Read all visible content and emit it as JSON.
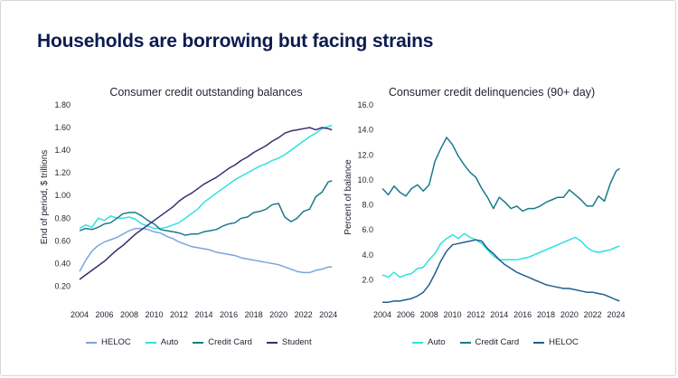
{
  "page": {
    "title": "Households are borrowing but facing strains"
  },
  "charts": [
    {
      "key": "left",
      "chart_data": {
        "type": "line",
        "title": "Consumer credit outstanding balances",
        "xlabel": "",
        "ylabel": "End of period, $ trillions",
        "xlim": [
          2004,
          2024.5
        ],
        "ylim": [
          0.1,
          1.8
        ],
        "x_ticks": [
          2004,
          2006,
          2008,
          2010,
          2012,
          2014,
          2016,
          2018,
          2020,
          2022,
          2024
        ],
        "y_ticks": [
          0.2,
          0.4,
          0.6,
          0.8,
          1.0,
          1.2,
          1.4,
          1.6,
          1.8
        ],
        "y_tick_labels": [
          "0.20",
          "0.40",
          "0.60",
          "0.80",
          "1.00",
          "1.20",
          "1.40",
          "1.60",
          "1.80"
        ],
        "grid": false,
        "legend_position": "bottom",
        "series": [
          {
            "name": "HELOC",
            "color": "#7aa6d8",
            "x": [
              2004,
              2004.5,
              2005,
              2005.5,
              2006,
              2006.5,
              2007,
              2007.5,
              2008,
              2008.5,
              2009,
              2009.5,
              2010,
              2010.5,
              2011,
              2011.5,
              2012,
              2012.5,
              2013,
              2013.5,
              2014,
              2014.5,
              2015,
              2015.5,
              2016,
              2016.5,
              2017,
              2017.5,
              2018,
              2018.5,
              2019,
              2019.5,
              2020,
              2020.5,
              2021,
              2021.5,
              2022,
              2022.5,
              2023,
              2023.5,
              2024,
              2024.3
            ],
            "values": [
              0.33,
              0.43,
              0.51,
              0.56,
              0.59,
              0.61,
              0.63,
              0.66,
              0.69,
              0.71,
              0.71,
              0.7,
              0.68,
              0.67,
              0.64,
              0.62,
              0.59,
              0.57,
              0.55,
              0.54,
              0.53,
              0.52,
              0.5,
              0.49,
              0.48,
              0.47,
              0.45,
              0.44,
              0.43,
              0.42,
              0.41,
              0.4,
              0.39,
              0.37,
              0.35,
              0.33,
              0.32,
              0.32,
              0.34,
              0.35,
              0.37,
              0.37
            ]
          },
          {
            "name": "Auto",
            "color": "#2fe0e0",
            "x": [
              2004,
              2004.5,
              2005,
              2005.5,
              2006,
              2006.5,
              2007,
              2007.5,
              2008,
              2008.5,
              2009,
              2009.5,
              2010,
              2010.5,
              2011,
              2011.5,
              2012,
              2012.5,
              2013,
              2013.5,
              2014,
              2014.5,
              2015,
              2015.5,
              2016,
              2016.5,
              2017,
              2017.5,
              2018,
              2018.5,
              2019,
              2019.5,
              2020,
              2020.5,
              2021,
              2021.5,
              2022,
              2022.5,
              2023,
              2023.5,
              2024,
              2024.3
            ],
            "values": [
              0.71,
              0.74,
              0.72,
              0.8,
              0.78,
              0.82,
              0.8,
              0.8,
              0.81,
              0.79,
              0.75,
              0.73,
              0.71,
              0.71,
              0.72,
              0.74,
              0.76,
              0.8,
              0.84,
              0.88,
              0.94,
              0.98,
              1.02,
              1.06,
              1.1,
              1.14,
              1.17,
              1.2,
              1.23,
              1.26,
              1.28,
              1.31,
              1.33,
              1.36,
              1.4,
              1.44,
              1.48,
              1.52,
              1.55,
              1.59,
              1.61,
              1.62
            ]
          },
          {
            "name": "Credit Card",
            "color": "#1a7a8c",
            "x": [
              2004,
              2004.5,
              2005,
              2005.5,
              2006,
              2006.5,
              2007,
              2007.5,
              2008,
              2008.5,
              2009,
              2009.5,
              2010,
              2010.5,
              2011,
              2011.5,
              2012,
              2012.5,
              2013,
              2013.5,
              2014,
              2014.5,
              2015,
              2015.5,
              2016,
              2016.5,
              2017,
              2017.5,
              2018,
              2018.5,
              2019,
              2019.5,
              2020,
              2020.5,
              2021,
              2021.5,
              2022,
              2022.5,
              2023,
              2023.5,
              2024,
              2024.3
            ],
            "values": [
              0.69,
              0.71,
              0.7,
              0.72,
              0.75,
              0.76,
              0.8,
              0.84,
              0.85,
              0.85,
              0.82,
              0.78,
              0.75,
              0.7,
              0.69,
              0.68,
              0.67,
              0.65,
              0.66,
              0.66,
              0.68,
              0.69,
              0.7,
              0.73,
              0.75,
              0.76,
              0.8,
              0.81,
              0.85,
              0.86,
              0.88,
              0.92,
              0.93,
              0.81,
              0.77,
              0.8,
              0.86,
              0.88,
              0.99,
              1.03,
              1.12,
              1.13
            ]
          },
          {
            "name": "Student",
            "color": "#3b2b6e",
            "x": [
              2004,
              2004.5,
              2005,
              2005.5,
              2006,
              2006.5,
              2007,
              2007.5,
              2008,
              2008.5,
              2009,
              2009.5,
              2010,
              2010.5,
              2011,
              2011.5,
              2012,
              2012.5,
              2013,
              2013.5,
              2014,
              2014.5,
              2015,
              2015.5,
              2016,
              2016.5,
              2017,
              2017.5,
              2018,
              2018.5,
              2019,
              2019.5,
              2020,
              2020.5,
              2021,
              2021.5,
              2022,
              2022.5,
              2023,
              2023.5,
              2024,
              2024.3
            ],
            "values": [
              0.26,
              0.3,
              0.34,
              0.38,
              0.42,
              0.47,
              0.52,
              0.56,
              0.61,
              0.66,
              0.7,
              0.74,
              0.78,
              0.82,
              0.86,
              0.9,
              0.95,
              0.99,
              1.02,
              1.06,
              1.1,
              1.13,
              1.16,
              1.2,
              1.24,
              1.27,
              1.31,
              1.34,
              1.38,
              1.41,
              1.44,
              1.48,
              1.51,
              1.55,
              1.57,
              1.58,
              1.59,
              1.6,
              1.58,
              1.6,
              1.59,
              1.58
            ]
          }
        ]
      }
    },
    {
      "key": "right",
      "chart_data": {
        "type": "line",
        "title": "Consumer credit delinquencies (90+ day)",
        "xlabel": "",
        "ylabel": "Percent of balance",
        "xlim": [
          2004,
          2024.5
        ],
        "ylim": [
          0,
          16
        ],
        "x_ticks": [
          2004,
          2006,
          2008,
          2010,
          2012,
          2014,
          2016,
          2018,
          2020,
          2022,
          2024
        ],
        "y_ticks": [
          2,
          4,
          6,
          8,
          10,
          12,
          14,
          16
        ],
        "y_tick_labels": [
          "2.0",
          "4.0",
          "6.0",
          "8.0",
          "10.0",
          "12.0",
          "14.0",
          "16.0"
        ],
        "grid": false,
        "legend_position": "bottom",
        "series": [
          {
            "name": "Auto",
            "color": "#2fe0e0",
            "x": [
              2004,
              2004.5,
              2005,
              2005.5,
              2006,
              2006.5,
              2007,
              2007.5,
              2008,
              2008.5,
              2009,
              2009.5,
              2010,
              2010.5,
              2011,
              2011.5,
              2012,
              2012.5,
              2013,
              2013.5,
              2014,
              2014.5,
              2015,
              2015.5,
              2016,
              2016.5,
              2017,
              2017.5,
              2018,
              2018.5,
              2019,
              2019.5,
              2020,
              2020.5,
              2021,
              2021.5,
              2022,
              2022.5,
              2023,
              2023.5,
              2024,
              2024.3
            ],
            "values": [
              2.4,
              2.2,
              2.6,
              2.2,
              2.4,
              2.5,
              2.9,
              3.0,
              3.6,
              4.1,
              4.9,
              5.3,
              5.6,
              5.3,
              5.7,
              5.4,
              5.2,
              4.9,
              4.4,
              3.9,
              3.6,
              3.6,
              3.6,
              3.6,
              3.7,
              3.8,
              4.0,
              4.2,
              4.4,
              4.6,
              4.8,
              5.0,
              5.2,
              5.4,
              5.1,
              4.6,
              4.3,
              4.2,
              4.3,
              4.4,
              4.6,
              4.7
            ]
          },
          {
            "name": "Credit Card",
            "color": "#1a7a8c",
            "x": [
              2004,
              2004.5,
              2005,
              2005.5,
              2006,
              2006.5,
              2007,
              2007.5,
              2008,
              2008.5,
              2009,
              2009.5,
              2010,
              2010.5,
              2011,
              2011.5,
              2012,
              2012.5,
              2013,
              2013.5,
              2014,
              2014.5,
              2015,
              2015.5,
              2016,
              2016.5,
              2017,
              2017.5,
              2018,
              2018.5,
              2019,
              2019.5,
              2020,
              2020.5,
              2021,
              2021.5,
              2022,
              2022.5,
              2023,
              2023.5,
              2024,
              2024.3
            ],
            "values": [
              9.3,
              8.8,
              9.5,
              9.0,
              8.7,
              9.3,
              9.6,
              9.1,
              9.6,
              11.5,
              12.5,
              13.4,
              12.8,
              11.9,
              11.2,
              10.6,
              10.2,
              9.3,
              8.6,
              7.7,
              8.6,
              8.2,
              7.7,
              7.9,
              7.5,
              7.7,
              7.7,
              7.9,
              8.2,
              8.4,
              8.6,
              8.6,
              9.2,
              8.8,
              8.4,
              7.9,
              7.9,
              8.7,
              8.3,
              9.7,
              10.7,
              10.9
            ]
          },
          {
            "name": "HELOC",
            "color": "#1f5f8f",
            "x": [
              2004,
              2004.5,
              2005,
              2005.5,
              2006,
              2006.5,
              2007,
              2007.5,
              2008,
              2008.5,
              2009,
              2009.5,
              2010,
              2010.5,
              2011,
              2011.5,
              2012,
              2012.5,
              2013,
              2013.5,
              2014,
              2014.5,
              2015,
              2015.5,
              2016,
              2016.5,
              2017,
              2017.5,
              2018,
              2018.5,
              2019,
              2019.5,
              2020,
              2020.5,
              2021,
              2021.5,
              2022,
              2022.5,
              2023,
              2023.5,
              2024,
              2024.3
            ],
            "values": [
              0.2,
              0.2,
              0.3,
              0.3,
              0.4,
              0.5,
              0.7,
              1.0,
              1.6,
              2.5,
              3.5,
              4.3,
              4.8,
              4.9,
              5.0,
              5.1,
              5.2,
              5.1,
              4.5,
              4.1,
              3.6,
              3.2,
              2.9,
              2.6,
              2.4,
              2.2,
              2.0,
              1.8,
              1.6,
              1.5,
              1.4,
              1.3,
              1.3,
              1.2,
              1.1,
              1.0,
              1.0,
              0.9,
              0.8,
              0.6,
              0.4,
              0.3
            ]
          }
        ]
      }
    }
  ]
}
